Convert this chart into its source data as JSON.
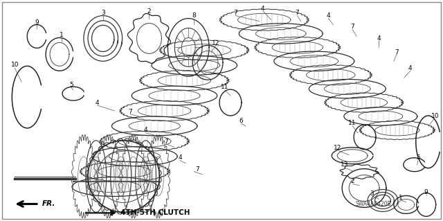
{
  "bg_color": "#ffffff",
  "border_color": "#888888",
  "diagram_code": "SWA4A0420B",
  "clutch_label": "➤ 4TH-5TH CLUTCH",
  "fr_label": "FR.",
  "figsize": [
    6.4,
    3.19
  ],
  "dpi": 100,
  "label_fontsize": 6.5,
  "clutch_fontsize": 7.5,
  "fr_fontsize": 7.5
}
